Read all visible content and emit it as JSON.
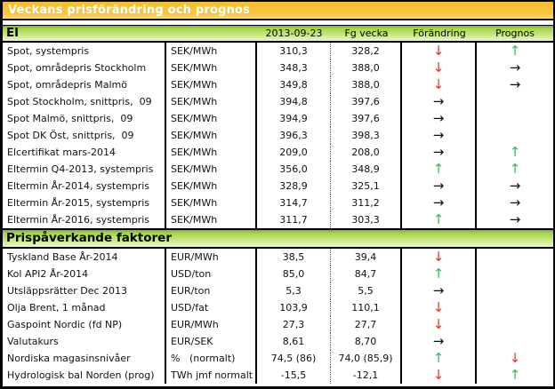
{
  "title": "Veckans prisförändring och prognos",
  "columns": {
    "date": "2013-09-23",
    "prev_week": "Fg vecka",
    "change": "Förändring",
    "forecast": "Prognos"
  },
  "sections": [
    {
      "label": "El",
      "rows": [
        {
          "name": "Spot, systempris",
          "unit": "SEK/MWh",
          "current": "310,3",
          "previous": "328,2",
          "change": "down",
          "forecast": "up"
        },
        {
          "name": "Spot, områdepris Stockholm",
          "unit": "SEK/MWh",
          "current": "348,3",
          "previous": "388,0",
          "change": "down",
          "forecast": "right"
        },
        {
          "name": "Spot, områdepris Malmö",
          "unit": "SEK/MWh",
          "current": "349,8",
          "previous": "388,0",
          "change": "down",
          "forecast": "right"
        },
        {
          "name": "Spot Stockholm, snittpris,  09",
          "unit": "SEK/MWh",
          "current": "394,8",
          "previous": "397,6",
          "change": "right",
          "forecast": "none"
        },
        {
          "name": "Spot Malmö, snittpris,  09",
          "unit": "SEK/MWh",
          "current": "394,9",
          "previous": "397,6",
          "change": "right",
          "forecast": "none"
        },
        {
          "name": "Spot DK Öst, snittpris,  09",
          "unit": "SEK/MWh",
          "current": "396,3",
          "previous": "398,3",
          "change": "right",
          "forecast": "none"
        },
        {
          "name": "Elcertifikat mars-2014",
          "unit": "SEK/MWh",
          "current": "209,0",
          "previous": "208,0",
          "change": "right",
          "forecast": "up"
        },
        {
          "name": "Eltermin Q4-2013, systempris",
          "unit": "SEK/MWh",
          "current": "356,0",
          "previous": "348,9",
          "change": "up",
          "forecast": "up"
        },
        {
          "name": "Eltermin År-2014, systempris",
          "unit": "SEK/MWh",
          "current": "328,9",
          "previous": "325,1",
          "change": "right",
          "forecast": "right"
        },
        {
          "name": "Eltermin År-2015, systempris",
          "unit": "SEK/MWh",
          "current": "314,7",
          "previous": "311,2",
          "change": "right",
          "forecast": "right"
        },
        {
          "name": "Eltermin År-2016, systempris",
          "unit": "SEK/MWh",
          "current": "311,7",
          "previous": "303,3",
          "change": "up",
          "forecast": "right"
        }
      ]
    },
    {
      "label": "Prispåverkande faktorer",
      "rows": [
        {
          "name": "Tyskland Base År-2014",
          "unit": "EUR/MWh",
          "current": "38,5",
          "previous": "39,4",
          "change": "down",
          "forecast": "none"
        },
        {
          "name": "Kol API2 År-2014",
          "unit": "USD/ton",
          "current": "85,0",
          "previous": "84,7",
          "change": "up",
          "forecast": "none"
        },
        {
          "name": "Utsläppsrätter Dec 2013",
          "unit": "EUR/ton",
          "current": "5,3",
          "previous": "5,5",
          "change": "right",
          "forecast": "none"
        },
        {
          "name": "Olja Brent, 1 månad",
          "unit": "USD/fat",
          "current": "103,9",
          "previous": "110,1",
          "change": "down",
          "forecast": "none"
        },
        {
          "name": "Gaspoint Nordic (fd NP)",
          "unit": "EUR/MWh",
          "current": "27,3",
          "previous": "27,7",
          "change": "down",
          "forecast": "none"
        },
        {
          "name": "Valutakurs",
          "unit": "EUR/SEK",
          "current": "8,61",
          "previous": "8,70",
          "change": "right",
          "forecast": "none"
        },
        {
          "name": "Nordiska magasinsnivåer",
          "unit": "%   (normalt)",
          "current": "74,5 (86)",
          "previous": "74,0 (85,9)",
          "change": "up",
          "forecast": "down"
        },
        {
          "name": "Hydrologisk bal Norden (prog)",
          "unit": "TWh jmf normalt",
          "current": "-15,5",
          "previous": "-12,1",
          "change": "down",
          "forecast": "up"
        }
      ]
    }
  ],
  "arrow_glyphs": {
    "up": "↑",
    "down": "↓",
    "right": "→",
    "none": ""
  },
  "colors": {
    "up_arrow": "#35B95B",
    "down_arrow": "#FB2A1C",
    "right_arrow": "#111111",
    "title_bg": "#F7C43A",
    "section_bg_top": "#8CC63F",
    "section_bg_bottom": "#E9F6C6"
  }
}
